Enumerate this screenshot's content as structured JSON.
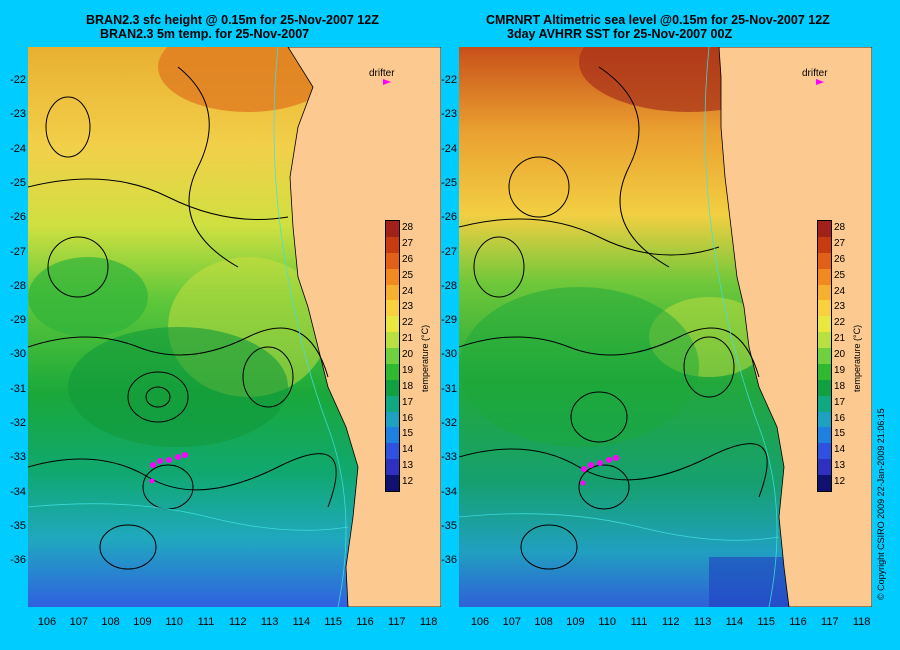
{
  "left_panel": {
    "title_line1": "BRAN2.3 sfc height @ 0.15m for 25-Nov-2007 12Z",
    "title_line2": "BRAN2.3 5m temp. for 25-Nov-2007"
  },
  "right_panel": {
    "title_line1": "CMRNRT Altimetric sea level  @0.15m  for 25-Nov-2007 12Z",
    "title_line2": "3day AVHRR SST for 25-Nov-2007 00Z"
  },
  "latitude_ticks": [
    "-22",
    "-23",
    "-24",
    "-25",
    "-26",
    "-27",
    "-28",
    "-29",
    "-30",
    "-31",
    "-32",
    "-33",
    "-34",
    "-35",
    "-36"
  ],
  "longitude_ticks": [
    "106",
    "107",
    "108",
    "109",
    "110",
    "111",
    "112",
    "113",
    "114",
    "115",
    "116",
    "117",
    "118"
  ],
  "colorbar": {
    "label": "temperature (°C)",
    "ticks": [
      "28",
      "27",
      "26",
      "25",
      "24",
      "23",
      "22",
      "21",
      "20",
      "19",
      "18",
      "17",
      "16",
      "15",
      "14",
      "13",
      "12"
    ],
    "colors": [
      "#a0201a",
      "#c83a10",
      "#e0601a",
      "#f08a20",
      "#f5b030",
      "#f8d040",
      "#e8e840",
      "#b8e040",
      "#70d040",
      "#30b830",
      "#10a040",
      "#10a880",
      "#20a0c0",
      "#2080e0",
      "#3050e0",
      "#3030c0",
      "#101070"
    ]
  },
  "drifter_label": "drifter",
  "copyright": "© Copyright CSIRO 2009   22-Jan-2009 21:06:15"
}
